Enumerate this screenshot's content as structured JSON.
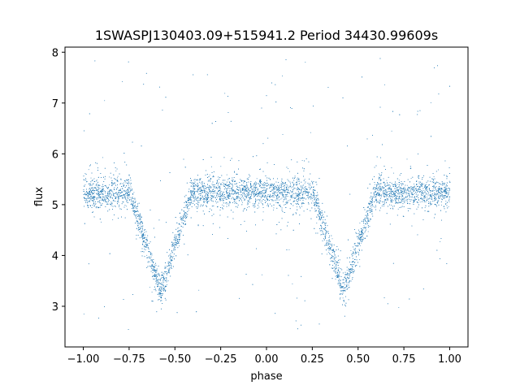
{
  "chart_data": {
    "type": "scatter",
    "title": "1SWASPJ130403.09+515941.2 Period 34430.99609s",
    "xlabel": "phase",
    "ylabel": "flux",
    "xlim": [
      -1.1,
      1.1
    ],
    "ylim": [
      2.2,
      8.1
    ],
    "x_ticks": [
      -1.0,
      -0.75,
      -0.5,
      -0.25,
      0.0,
      0.25,
      0.5,
      0.75,
      1.0
    ],
    "x_tick_labels": [
      "−1.00",
      "−0.75",
      "−0.50",
      "−0.25",
      "0.00",
      "0.25",
      "0.50",
      "0.75",
      "1.00"
    ],
    "y_ticks": [
      3,
      4,
      5,
      6,
      7,
      8
    ],
    "y_tick_labels": [
      "3",
      "4",
      "5",
      "6",
      "7",
      "8"
    ],
    "marker_color": "#1f77b4",
    "grid": false,
    "legend": "none",
    "series": [
      {
        "x_range": [
          -1.0,
          1.0
        ],
        "baseline_flux": 5.25,
        "baseline_scatter": 0.2,
        "eclipses": [
          {
            "phase_center": -0.58,
            "min_flux": 3.3
          },
          {
            "phase_center": 0.42,
            "min_flux": 3.3
          }
        ],
        "outlier_range": [
          2.5,
          7.9
        ]
      }
    ]
  }
}
